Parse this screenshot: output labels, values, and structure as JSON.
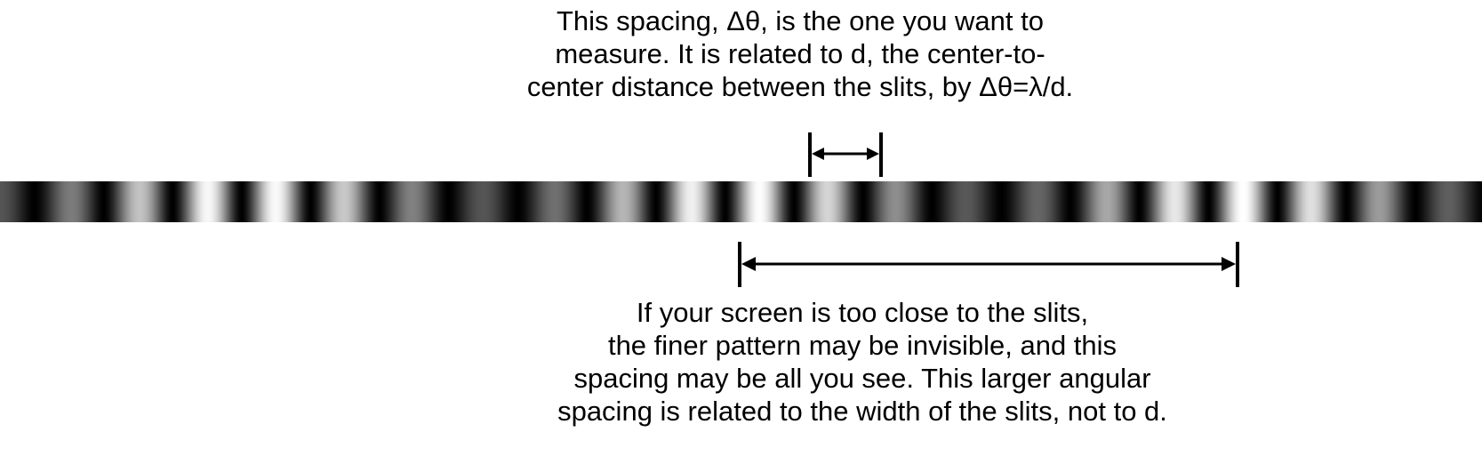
{
  "caption_top": {
    "lines": [
      "This spacing, Δθ, is the one you want to",
      "measure.  It is related to d, the center-to-",
      "center distance between the slits, by  Δθ=λ/d."
    ]
  },
  "caption_bottom": {
    "lines": [
      "If your screen is  too close to the slits,",
      "the finer pattern may be invisible, and this",
      "spacing may be all you see.  This larger angular",
      "spacing is related to the width of the slits, not to d."
    ]
  },
  "pattern": {
    "fine_fringe_period_fraction": 0.0466,
    "envelope_period_fraction": 0.335,
    "envelope_center_fraction": 0.5
  }
}
